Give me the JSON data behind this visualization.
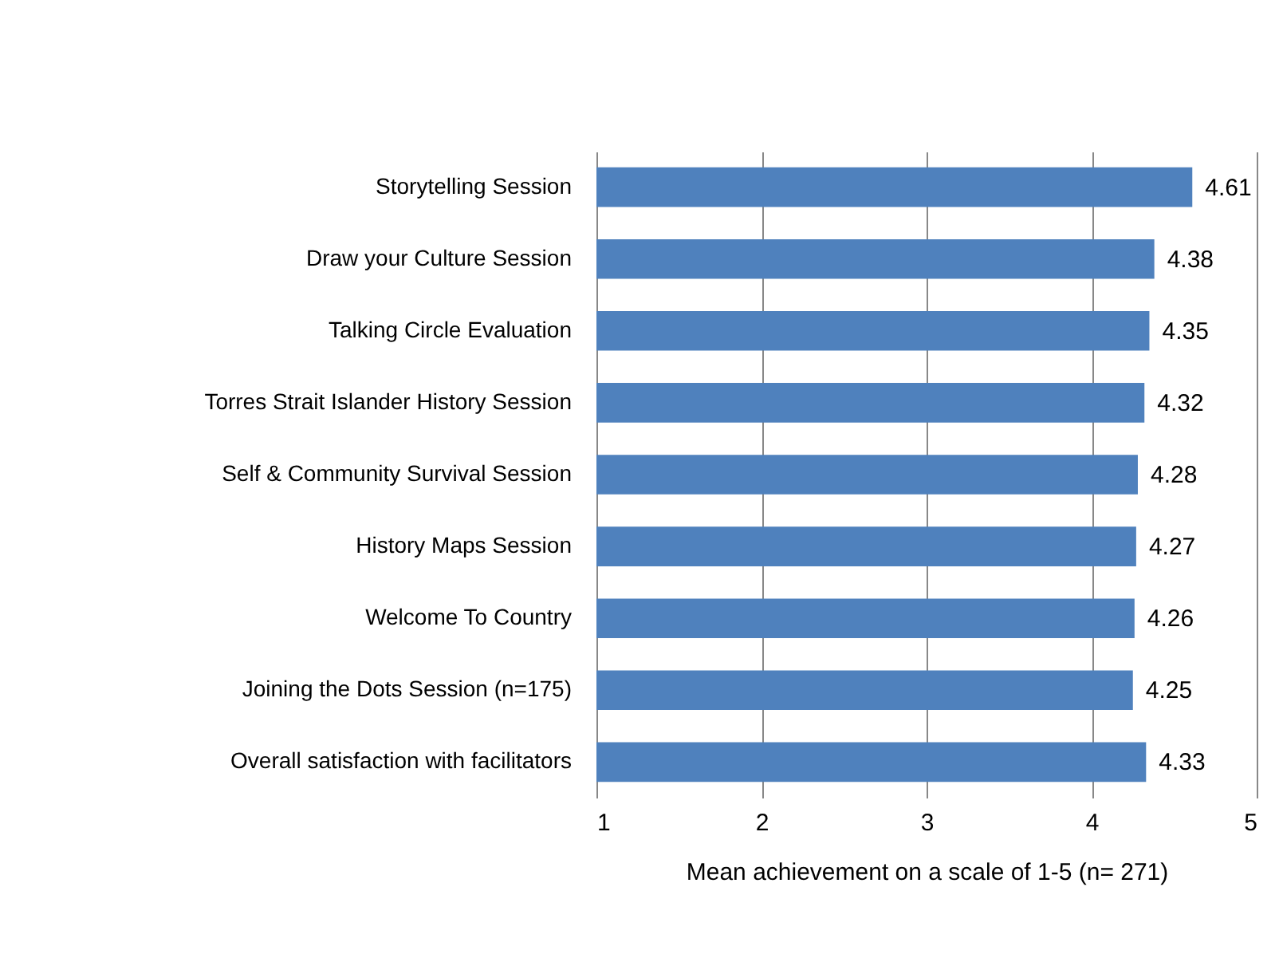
{
  "chart_data": {
    "type": "bar",
    "orientation": "horizontal",
    "xlabel": "Mean achievement on a scale of 1-5 (n= 271)",
    "categories": [
      "Storytelling Session",
      "Draw your Culture Session",
      "Talking Circle Evaluation",
      "Torres Strait Islander History Session",
      "Self & Community Survival Session",
      "History Maps Session",
      "Welcome To Country",
      "Joining the Dots Session (n=175)",
      "Overall satisfaction with facilitators"
    ],
    "values": [
      4.61,
      4.38,
      4.35,
      4.32,
      4.28,
      4.27,
      4.26,
      4.25,
      4.33
    ],
    "color": "#4f81bd",
    "xlim": [
      1,
      5
    ],
    "xticks": [
      1,
      2,
      3,
      4,
      5
    ],
    "grid": "x",
    "data_labels": true
  }
}
